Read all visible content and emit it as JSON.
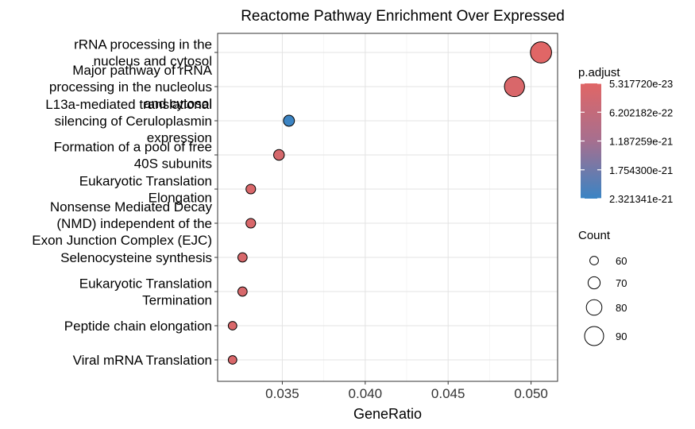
{
  "chart_data": {
    "type": "scatter",
    "title": "Reactome Pathway Enrichment Over Expressed",
    "xlabel": "GeneRatio",
    "ylabel": "",
    "xlim": [
      0.0311,
      0.0516
    ],
    "x_ticks": [
      "0.035",
      "0.040",
      "0.045",
      "0.050"
    ],
    "x_tick_values": [
      0.035,
      0.04,
      0.045,
      0.05
    ],
    "grid": true,
    "categories": [
      {
        "label": [
          "rRNA processing in the",
          "nucleus and cytosol"
        ]
      },
      {
        "label": [
          "Major pathway of rRNA",
          "processing in the nucleolus",
          "and cytosol"
        ]
      },
      {
        "label": [
          "L13a-mediated translational",
          "silencing of Ceruloplasmin",
          "expression"
        ]
      },
      {
        "label": [
          "Formation of a pool of free",
          "40S subunits"
        ]
      },
      {
        "label": [
          "Eukaryotic Translation",
          "Elongation"
        ]
      },
      {
        "label": [
          "Nonsense Mediated Decay",
          "(NMD) independent of the",
          "Exon Junction Complex (EJC)"
        ]
      },
      {
        "label": [
          "Selenocysteine synthesis"
        ]
      },
      {
        "label": [
          "Eukaryotic Translation",
          "Termination"
        ]
      },
      {
        "label": [
          "Peptide chain elongation"
        ]
      },
      {
        "label": [
          "Viral mRNA Translation"
        ]
      }
    ],
    "points": [
      {
        "x": 0.0506,
        "count": 96,
        "p_adjust": 5.6e-23
      },
      {
        "x": 0.049,
        "count": 93,
        "p_adjust": 1.5e-22
      },
      {
        "x": 0.0354,
        "count": 67,
        "p_adjust": 2.3e-21
      },
      {
        "x": 0.0348,
        "count": 66,
        "p_adjust": 2e-22
      },
      {
        "x": 0.0331,
        "count": 63,
        "p_adjust": 1.5e-22
      },
      {
        "x": 0.0331,
        "count": 63,
        "p_adjust": 1.6e-22
      },
      {
        "x": 0.0326,
        "count": 62,
        "p_adjust": 1.7e-22
      },
      {
        "x": 0.0326,
        "count": 62,
        "p_adjust": 1.7e-22
      },
      {
        "x": 0.032,
        "count": 60,
        "p_adjust": 1.5e-22
      },
      {
        "x": 0.032,
        "count": 60,
        "p_adjust": 1.5e-22
      }
    ],
    "color_legend": {
      "title": "p.adjust",
      "labels": [
        "5.317720e-23",
        "6.202182e-22",
        "1.187259e-21",
        "1.754300e-21",
        "2.321341e-21"
      ],
      "values": [
        5.31772e-23,
        6.202182e-22,
        1.187259e-21,
        1.7543e-21,
        2.321341e-21
      ],
      "low_color": "#E06666",
      "high_color": "#3A84C4"
    },
    "size_legend": {
      "title": "Count",
      "labels": [
        "60",
        "70",
        "80",
        "90"
      ],
      "values": [
        60,
        70,
        80,
        90
      ]
    }
  }
}
